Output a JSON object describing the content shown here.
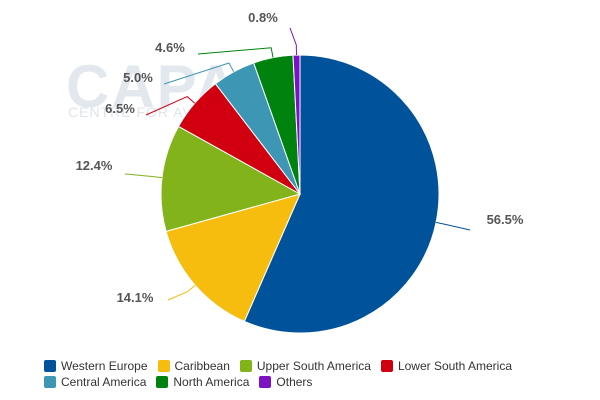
{
  "watermark": {
    "main": "CAPA",
    "sub": "CENTRE FOR AVIATION"
  },
  "chart_data": {
    "type": "pie",
    "slices": [
      {
        "name": "Western Europe",
        "value": 56.5,
        "label": "56.5%",
        "color": "#00539b"
      },
      {
        "name": "Caribbean",
        "value": 14.1,
        "label": "14.1%",
        "color": "#f6bd0f"
      },
      {
        "name": "Upper South America",
        "value": 12.4,
        "label": "12.4%",
        "color": "#82b31b"
      },
      {
        "name": "Lower South America",
        "value": 6.5,
        "label": "6.5%",
        "color": "#d00010"
      },
      {
        "name": "Central America",
        "value": 5.0,
        "label": "5.0%",
        "color": "#3d97b4"
      },
      {
        "name": "North America",
        "value": 4.6,
        "label": "4.6%",
        "color": "#00820f"
      },
      {
        "name": "Others",
        "value": 0.8,
        "label": "0.8%",
        "color": "#7d12c2"
      }
    ],
    "legend_position": "bottom"
  }
}
